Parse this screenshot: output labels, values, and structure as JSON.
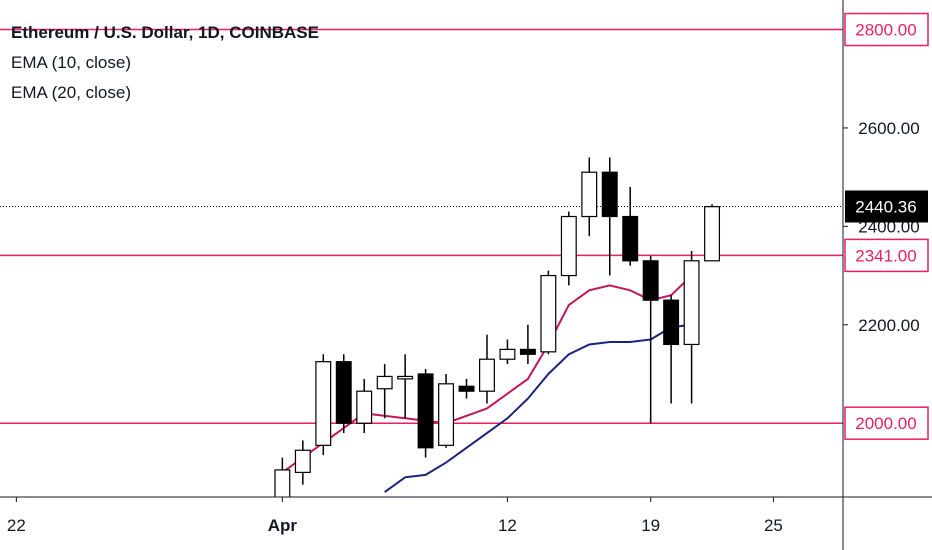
{
  "legend": {
    "title": "Ethereum / U.S. Dollar, 1D, COINBASE",
    "ema1": "EMA (10, close)",
    "ema2": "EMA (20, close)"
  },
  "chart_data": {
    "type": "candlestick",
    "symbol": "Ethereum / U.S. Dollar",
    "interval": "1D",
    "exchange": "COINBASE",
    "ylim": [
      1850,
      2860
    ],
    "xlim_index": [
      -13.8,
      27.4
    ],
    "x_ticks": [
      {
        "label": "22",
        "index": -13
      },
      {
        "label": "Apr",
        "index": 0
      },
      {
        "label": "12",
        "index": 11
      },
      {
        "label": "19",
        "index": 18
      },
      {
        "label": "25",
        "index": 24
      }
    ],
    "y_ticks": [
      {
        "label": "2200.00",
        "value": 2200
      },
      {
        "label": "2400.00",
        "value": 2400
      },
      {
        "label": "2600.00",
        "value": 2600
      }
    ],
    "candles": [
      {
        "date": "2021-03-31",
        "open": 1840,
        "high": 1930,
        "low": 1840,
        "close": 1905
      },
      {
        "date": "2021-04-01",
        "open": 1900,
        "high": 1965,
        "low": 1875,
        "close": 1945
      },
      {
        "date": "2021-04-02",
        "open": 1955,
        "high": 2140,
        "low": 1935,
        "close": 2125
      },
      {
        "date": "2021-04-03",
        "open": 2125,
        "high": 2140,
        "low": 1980,
        "close": 2000
      },
      {
        "date": "2021-04-04",
        "open": 2000,
        "high": 2090,
        "low": 1980,
        "close": 2065
      },
      {
        "date": "2021-04-05",
        "open": 2070,
        "high": 2120,
        "low": 2010,
        "close": 2095
      },
      {
        "date": "2021-04-06",
        "open": 2090,
        "high": 2140,
        "low": 2010,
        "close": 2095
      },
      {
        "date": "2021-04-07",
        "open": 2100,
        "high": 2110,
        "low": 1930,
        "close": 1950
      },
      {
        "date": "2021-04-08",
        "open": 1955,
        "high": 2100,
        "low": 1950,
        "close": 2080
      },
      {
        "date": "2021-04-09",
        "open": 2075,
        "high": 2090,
        "low": 2050,
        "close": 2065
      },
      {
        "date": "2021-04-10",
        "open": 2065,
        "high": 2180,
        "low": 2040,
        "close": 2130
      },
      {
        "date": "2021-04-11",
        "open": 2130,
        "high": 2170,
        "low": 2120,
        "close": 2150
      },
      {
        "date": "2021-04-12",
        "open": 2150,
        "high": 2200,
        "low": 2120,
        "close": 2140
      },
      {
        "date": "2021-04-13",
        "open": 2145,
        "high": 2310,
        "low": 2140,
        "close": 2300
      },
      {
        "date": "2021-04-14",
        "open": 2300,
        "high": 2430,
        "low": 2280,
        "close": 2420
      },
      {
        "date": "2021-04-15",
        "open": 2420,
        "high": 2540,
        "low": 2380,
        "close": 2510
      },
      {
        "date": "2021-04-16",
        "open": 2510,
        "high": 2540,
        "low": 2300,
        "close": 2420
      },
      {
        "date": "2021-04-17",
        "open": 2420,
        "high": 2480,
        "low": 2320,
        "close": 2330
      },
      {
        "date": "2021-04-18",
        "open": 2330,
        "high": 2340,
        "low": 2000,
        "close": 2250
      },
      {
        "date": "2021-04-19",
        "open": 2250,
        "high": 2260,
        "low": 2040,
        "close": 2160
      },
      {
        "date": "2021-04-20",
        "open": 2160,
        "high": 2350,
        "low": 2040,
        "close": 2330
      },
      {
        "date": "2021-04-21",
        "open": 2330,
        "high": 2445,
        "low": 2330,
        "close": 2440
      }
    ],
    "ema10": {
      "name": "EMA (10, close)",
      "color": "#c2185b",
      "values": [
        [
          0,
          1900
        ],
        [
          2,
          1960
        ],
        [
          4,
          2020
        ],
        [
          6,
          2010
        ],
        [
          8,
          2000
        ],
        [
          10,
          2030
        ],
        [
          11,
          2060
        ],
        [
          12,
          2090
        ],
        [
          13,
          2160
        ],
        [
          14,
          2240
        ],
        [
          15,
          2270
        ],
        [
          16,
          2280
        ],
        [
          17,
          2270
        ],
        [
          18,
          2250
        ],
        [
          19,
          2260
        ],
        [
          20,
          2300
        ]
      ]
    },
    "ema20": {
      "name": "EMA (20, close)",
      "color": "#1a237e",
      "values": [
        [
          5,
          1860
        ],
        [
          6,
          1890
        ],
        [
          7,
          1895
        ],
        [
          8,
          1920
        ],
        [
          9,
          1950
        ],
        [
          10,
          1980
        ],
        [
          11,
          2010
        ],
        [
          12,
          2050
        ],
        [
          13,
          2100
        ],
        [
          14,
          2140
        ],
        [
          15,
          2160
        ],
        [
          16,
          2165
        ],
        [
          17,
          2165
        ],
        [
          18,
          2170
        ],
        [
          19,
          2195
        ],
        [
          20,
          2200
        ]
      ]
    },
    "horizontal_lines": [
      {
        "label": "2800.00",
        "value": 2800,
        "color": "#e91e63"
      },
      {
        "label": "2341.00",
        "value": 2341,
        "color": "#e91e63"
      },
      {
        "label": "2000.00",
        "value": 2000,
        "color": "#e91e63"
      }
    ],
    "last_price": {
      "label": "2440.36",
      "value": 2440.36,
      "color": "#000000"
    },
    "grid": false,
    "legend_position": "top-left"
  }
}
